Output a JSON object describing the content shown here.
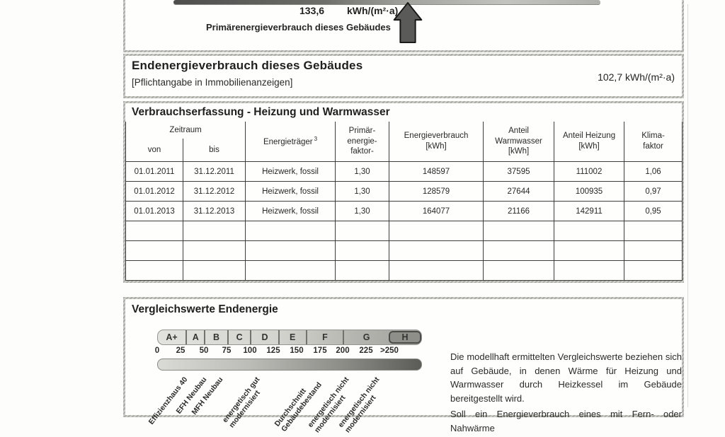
{
  "top_section": {
    "value": "133,6",
    "unit": "kWh/(m²·a)",
    "label": "Primärenergieverbrauch dieses Gebäudes"
  },
  "end_energy_section": {
    "title": "Endenergieverbrauch dieses Gebäudes",
    "subtitle": "[Pflichtangabe in Immobilienanzeigen]",
    "value": "102,7 kWh/(m²·a)"
  },
  "consumption_section": {
    "title": "Verbrauchserfassung - Heizung und Warmwasser",
    "table": {
      "header": {
        "zeitraum": "Zeitraum",
        "von": "von",
        "bis": "bis",
        "energietraeger": "Energieträger",
        "energietraeger_footnote": "3",
        "primaerfaktor": "Primär-\nenergie-\nfaktor-",
        "energieverbrauch": "Energieverbrauch\n[kWh]",
        "anteil_warmwasser": "Anteil\nWarmwasser\n[kWh]",
        "anteil_heizung": "Anteil Heizung\n[kWh]",
        "klimafaktor": "Klima-\nfaktor"
      },
      "rows": [
        [
          "01.01.2011",
          "31.12.2011",
          "Heizwerk, fossil",
          "1,30",
          "148597",
          "37595",
          "111002",
          "1,06"
        ],
        [
          "01.01.2012",
          "31.12.2012",
          "Heizwerk, fossil",
          "1,30",
          "128579",
          "27644",
          "100935",
          "0,97"
        ],
        [
          "01.01.2013",
          "31.12.2013",
          "Heizwerk, fossil",
          "1,30",
          "164077",
          "21166",
          "142911",
          "0,95"
        ]
      ],
      "empty_row_count": 3
    }
  },
  "comparison_section": {
    "title": "Vergleichswerte Endenergie",
    "scale": {
      "classes": [
        "A+",
        "A",
        "B",
        "C",
        "D",
        "E",
        "F",
        "G",
        "H"
      ],
      "ticks": [
        "0",
        "25",
        "50",
        "75",
        "100",
        "125",
        "150",
        "175",
        "200",
        "225",
        ">250"
      ]
    },
    "scale_labels": [
      "Effizienzhaus 40",
      "EFH Neubau",
      "MFH Neubau",
      "energetisch gut\nmodernisiert",
      "Durchschnitt\nGebäudebestand",
      "energetisch nicht\nmodernisiert",
      "energetisch nicht\nmodernisiert"
    ],
    "note": [
      "Die modellhaft ermittelten Vergleichswerte beziehen sich auf Gebäude, in denen Wärme für Heizung und Warmwasser durch Heizkessel im Gebäude bereitgestellt wird.",
      "Soll ein Energieverbrauch eines mit Fern- oder Nahwärme"
    ]
  },
  "colors": {
    "scan_border": "#b3b3ad",
    "table_line": "#3d3d3b",
    "arrow_fill": "#5a5a58",
    "band_dark": "#5b5b57"
  }
}
